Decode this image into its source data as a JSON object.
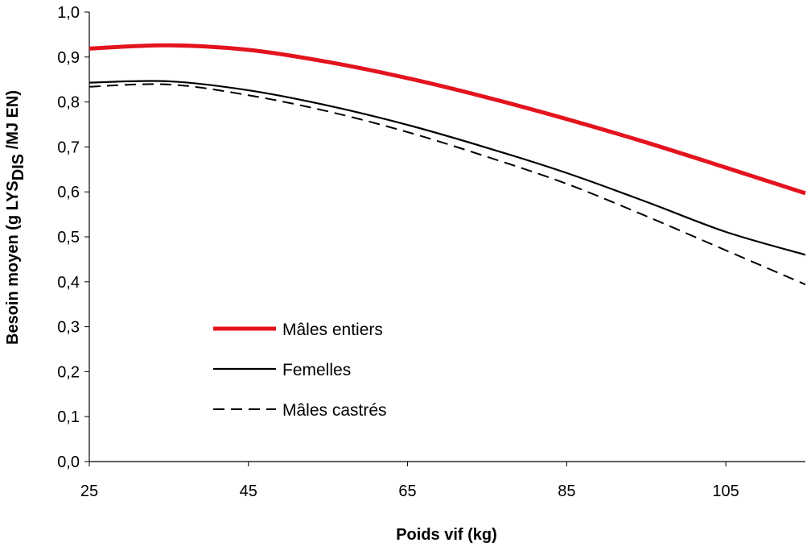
{
  "chart_data": {
    "type": "line",
    "title": "",
    "xlabel": "Poids vif (kg)",
    "ylabel": {
      "main": "Besoin moyen (g LYS",
      "sub": "DIS",
      "tail": " /MJ EN)"
    },
    "xlim": [
      25,
      115
    ],
    "ylim": [
      0,
      1.0
    ],
    "xticks": [
      "25",
      "45",
      "65",
      "85",
      "105"
    ],
    "xtick_values": [
      25,
      45,
      65,
      85,
      105
    ],
    "yticks": [
      "0,0",
      "0,1",
      "0,2",
      "0,3",
      "0,4",
      "0,5",
      "0,6",
      "0,7",
      "0,8",
      "0,9",
      "1,0"
    ],
    "ytick_values": [
      0,
      0.1,
      0.2,
      0.3,
      0.4,
      0.5,
      0.6,
      0.7,
      0.8,
      0.9,
      1.0
    ],
    "grid": false,
    "legend_placement": "bottom-left",
    "x": [
      25,
      35,
      45,
      55,
      65,
      75,
      85,
      95,
      105,
      115
    ],
    "series": [
      {
        "name": "Mâles entiers",
        "color": "#e3141e",
        "style": "solid-thick",
        "values": [
          0.919,
          0.926,
          0.916,
          0.889,
          0.853,
          0.81,
          0.762,
          0.71,
          0.654,
          0.597
        ]
      },
      {
        "name": "Femelles",
        "color": "#000000",
        "style": "solid",
        "values": [
          0.843,
          0.846,
          0.826,
          0.792,
          0.749,
          0.698,
          0.642,
          0.578,
          0.511,
          0.46
        ]
      },
      {
        "name": "Mâles castrés",
        "color": "#000000",
        "style": "dashed",
        "values": [
          0.834,
          0.839,
          0.815,
          0.779,
          0.733,
          0.678,
          0.618,
          0.546,
          0.47,
          0.394
        ]
      }
    ]
  }
}
